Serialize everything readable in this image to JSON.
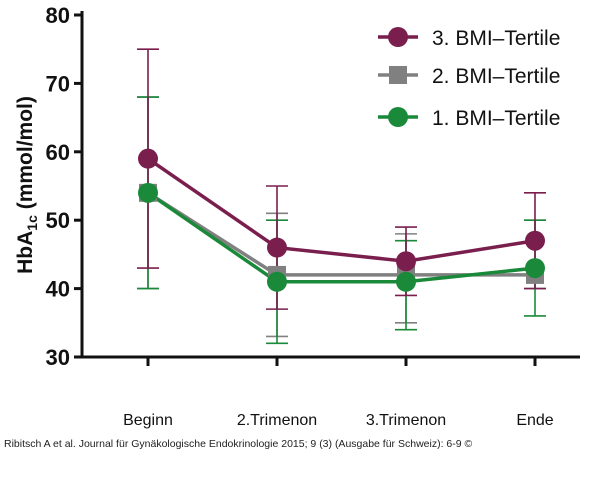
{
  "chart_data": {
    "type": "line",
    "categories": [
      "Beginn",
      "2.Trimenon",
      "3.Trimenon",
      "Ende"
    ],
    "ylabel_main": "HbA",
    "ylabel_sub": "1c",
    "ylabel_unit": "(mmol/mol)",
    "ylim": [
      30,
      80
    ],
    "yticks": [
      30,
      40,
      50,
      60,
      70,
      80
    ],
    "legend_position": "top-right",
    "series": [
      {
        "name": "3. BMI‒Tertile",
        "color": "#7a1f4d",
        "marker": "circle",
        "values": [
          59,
          46,
          44,
          47
        ],
        "err_low": [
          43,
          37,
          39,
          40
        ],
        "err_high": [
          75,
          55,
          49,
          54
        ]
      },
      {
        "name": "2. BMI‒Tertile",
        "color": "#808080",
        "marker": "square",
        "values": [
          54,
          42,
          42,
          42
        ],
        "err_low": [
          40,
          33,
          35,
          40
        ],
        "err_high": [
          68,
          51,
          48,
          50
        ]
      },
      {
        "name": "1. BMI‒Tertile",
        "color": "#1a8a3a",
        "marker": "circle",
        "values": [
          54,
          41,
          41,
          43
        ],
        "err_low": [
          40,
          32,
          34,
          36
        ],
        "err_high": [
          68,
          50,
          47,
          50
        ]
      }
    ]
  },
  "caption": "Ribitsch A et al. Journal für Gynäkologische Endokrinologie 2015; 9 (3) (Ausgabe für Schweiz): 6-9 ©"
}
